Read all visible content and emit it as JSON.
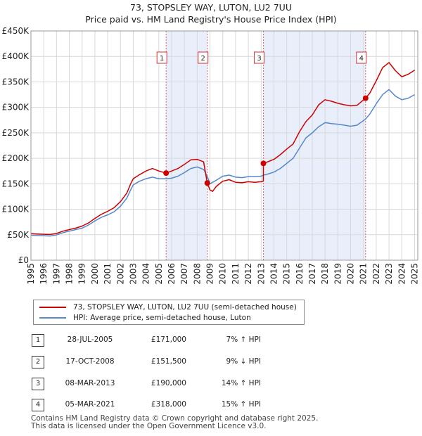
{
  "title": "73, STOPSLEY WAY, LUTON, LU2 7UU",
  "subtitle": "Price paid vs. HM Land Registry's House Price Index (HPI)",
  "chart_data": {
    "type": "line",
    "x_range": [
      1995,
      2025.25
    ],
    "y_range": [
      0,
      450000
    ],
    "x_ticks": [
      "1995",
      "1996",
      "1997",
      "1998",
      "1999",
      "2000",
      "2001",
      "2002",
      "2003",
      "2004",
      "2005",
      "2006",
      "2007",
      "2008",
      "2009",
      "2010",
      "2011",
      "2012",
      "2013",
      "2014",
      "2015",
      "2016",
      "2017",
      "2018",
      "2019",
      "2020",
      "2021",
      "2022",
      "2023",
      "2024",
      "2025"
    ],
    "y_ticks": [
      {
        "value": 0,
        "label": "£0"
      },
      {
        "value": 50000,
        "label": "£50K"
      },
      {
        "value": 100000,
        "label": "£100K"
      },
      {
        "value": 150000,
        "label": "£150K"
      },
      {
        "value": 200000,
        "label": "£200K"
      },
      {
        "value": 250000,
        "label": "£250K"
      },
      {
        "value": 300000,
        "label": "£300K"
      },
      {
        "value": 350000,
        "label": "£350K"
      },
      {
        "value": 400000,
        "label": "£400K"
      },
      {
        "value": 450000,
        "label": "£450K"
      }
    ],
    "grid": true,
    "shaded_periods": [
      [
        2005.57,
        2008.79
      ],
      [
        2013.18,
        2021.17
      ]
    ],
    "series": [
      {
        "name": "73, STOPSLEY WAY, LUTON, LU2 7UU (semi-detached house)",
        "color": "#cc0000",
        "points": [
          [
            1995.0,
            52000
          ],
          [
            1995.5,
            51500
          ],
          [
            1996.0,
            51000
          ],
          [
            1996.5,
            50500
          ],
          [
            1997.0,
            52500
          ],
          [
            1997.5,
            57000
          ],
          [
            1998.0,
            60000
          ],
          [
            1998.5,
            63000
          ],
          [
            1999.0,
            67000
          ],
          [
            1999.5,
            73000
          ],
          [
            2000.0,
            82000
          ],
          [
            2000.5,
            90000
          ],
          [
            2001.0,
            96000
          ],
          [
            2001.5,
            103000
          ],
          [
            2002.0,
            115000
          ],
          [
            2002.5,
            132000
          ],
          [
            2002.8,
            150000
          ],
          [
            2003.0,
            160000
          ],
          [
            2003.5,
            168000
          ],
          [
            2004.0,
            175000
          ],
          [
            2004.5,
            180000
          ],
          [
            2005.0,
            175000
          ],
          [
            2005.57,
            171000
          ],
          [
            2006.0,
            175000
          ],
          [
            2006.5,
            180000
          ],
          [
            2007.0,
            188000
          ],
          [
            2007.5,
            197000
          ],
          [
            2008.0,
            198000
          ],
          [
            2008.5,
            193000
          ],
          [
            2008.79,
            151500
          ],
          [
            2009.0,
            138000
          ],
          [
            2009.2,
            135000
          ],
          [
            2009.5,
            145000
          ],
          [
            2010.0,
            155000
          ],
          [
            2010.5,
            158000
          ],
          [
            2011.0,
            153000
          ],
          [
            2011.5,
            152000
          ],
          [
            2012.0,
            154000
          ],
          [
            2012.5,
            153000
          ],
          [
            2013.0,
            154000
          ],
          [
            2013.17,
            155000
          ],
          [
            2013.18,
            190000
          ],
          [
            2013.5,
            193000
          ],
          [
            2014.0,
            198000
          ],
          [
            2014.5,
            207000
          ],
          [
            2015.0,
            218000
          ],
          [
            2015.5,
            228000
          ],
          [
            2016.0,
            252000
          ],
          [
            2016.5,
            272000
          ],
          [
            2017.0,
            285000
          ],
          [
            2017.5,
            305000
          ],
          [
            2018.0,
            315000
          ],
          [
            2018.5,
            312000
          ],
          [
            2019.0,
            308000
          ],
          [
            2019.5,
            305000
          ],
          [
            2020.0,
            303000
          ],
          [
            2020.5,
            304000
          ],
          [
            2021.17,
            318000
          ],
          [
            2021.5,
            328000
          ],
          [
            2022.0,
            352000
          ],
          [
            2022.5,
            378000
          ],
          [
            2023.0,
            388000
          ],
          [
            2023.5,
            372000
          ],
          [
            2024.0,
            360000
          ],
          [
            2024.5,
            365000
          ],
          [
            2025.0,
            373000
          ]
        ]
      },
      {
        "name": "HPI: Average price, semi-detached house, Luton",
        "color": "#5588cc",
        "points": [
          [
            1995.0,
            49000
          ],
          [
            1995.5,
            48500
          ],
          [
            1996.0,
            48000
          ],
          [
            1996.5,
            47500
          ],
          [
            1997.0,
            49500
          ],
          [
            1997.5,
            54000
          ],
          [
            1998.0,
            57000
          ],
          [
            1998.5,
            60000
          ],
          [
            1999.0,
            63000
          ],
          [
            1999.5,
            69000
          ],
          [
            2000.0,
            77000
          ],
          [
            2000.5,
            84000
          ],
          [
            2001.0,
            89000
          ],
          [
            2001.5,
            95000
          ],
          [
            2002.0,
            106000
          ],
          [
            2002.5,
            122000
          ],
          [
            2002.8,
            138000
          ],
          [
            2003.0,
            148000
          ],
          [
            2003.5,
            155000
          ],
          [
            2004.0,
            160000
          ],
          [
            2004.5,
            163000
          ],
          [
            2005.0,
            160000
          ],
          [
            2005.57,
            160000
          ],
          [
            2006.0,
            161000
          ],
          [
            2006.5,
            165000
          ],
          [
            2007.0,
            172000
          ],
          [
            2007.5,
            180000
          ],
          [
            2008.0,
            183000
          ],
          [
            2008.5,
            178000
          ],
          [
            2008.79,
            165000
          ],
          [
            2009.0,
            150000
          ],
          [
            2009.5,
            157000
          ],
          [
            2010.0,
            165000
          ],
          [
            2010.5,
            167000
          ],
          [
            2011.0,
            163000
          ],
          [
            2011.5,
            162000
          ],
          [
            2012.0,
            164000
          ],
          [
            2012.5,
            164000
          ],
          [
            2013.0,
            165000
          ],
          [
            2013.18,
            167000
          ],
          [
            2013.5,
            169000
          ],
          [
            2014.0,
            173000
          ],
          [
            2014.5,
            180000
          ],
          [
            2015.0,
            190000
          ],
          [
            2015.5,
            200000
          ],
          [
            2016.0,
            220000
          ],
          [
            2016.5,
            240000
          ],
          [
            2017.0,
            250000
          ],
          [
            2017.5,
            262000
          ],
          [
            2018.0,
            270000
          ],
          [
            2018.5,
            268000
          ],
          [
            2019.0,
            267000
          ],
          [
            2019.5,
            265000
          ],
          [
            2020.0,
            263000
          ],
          [
            2020.5,
            265000
          ],
          [
            2021.17,
            277000
          ],
          [
            2021.5,
            287000
          ],
          [
            2022.0,
            307000
          ],
          [
            2022.5,
            325000
          ],
          [
            2023.0,
            335000
          ],
          [
            2023.5,
            322000
          ],
          [
            2024.0,
            315000
          ],
          [
            2024.5,
            318000
          ],
          [
            2025.0,
            325000
          ]
        ]
      }
    ],
    "markers": [
      {
        "label": "1",
        "x": 2005.57,
        "y": 171000
      },
      {
        "label": "2",
        "x": 2008.79,
        "y": 151500
      },
      {
        "label": "3",
        "x": 2013.18,
        "y": 190000
      },
      {
        "label": "4",
        "x": 2021.17,
        "y": 318000
      }
    ]
  },
  "legend": {
    "property_label": "73, STOPSLEY WAY, LUTON, LU2 7UU (semi-detached house)",
    "hpi_label": "HPI: Average price, semi-detached house, Luton",
    "property_color": "#cc0000",
    "hpi_color": "#5588cc"
  },
  "sales": [
    {
      "num": "1",
      "date": "28-JUL-2005",
      "price": "£171,000",
      "hpi": "7% ↑ HPI"
    },
    {
      "num": "2",
      "date": "17-OCT-2008",
      "price": "£151,500",
      "hpi": "9% ↓ HPI"
    },
    {
      "num": "3",
      "date": "08-MAR-2013",
      "price": "£190,000",
      "hpi": "14% ↑ HPI"
    },
    {
      "num": "4",
      "date": "05-MAR-2021",
      "price": "£318,000",
      "hpi": "15% ↑ HPI"
    }
  ],
  "footer": {
    "line1": "Contains HM Land Registry data © Crown copyright and database right 2025.",
    "line2": "This data is licensed under the Open Government Licence v3.0."
  }
}
